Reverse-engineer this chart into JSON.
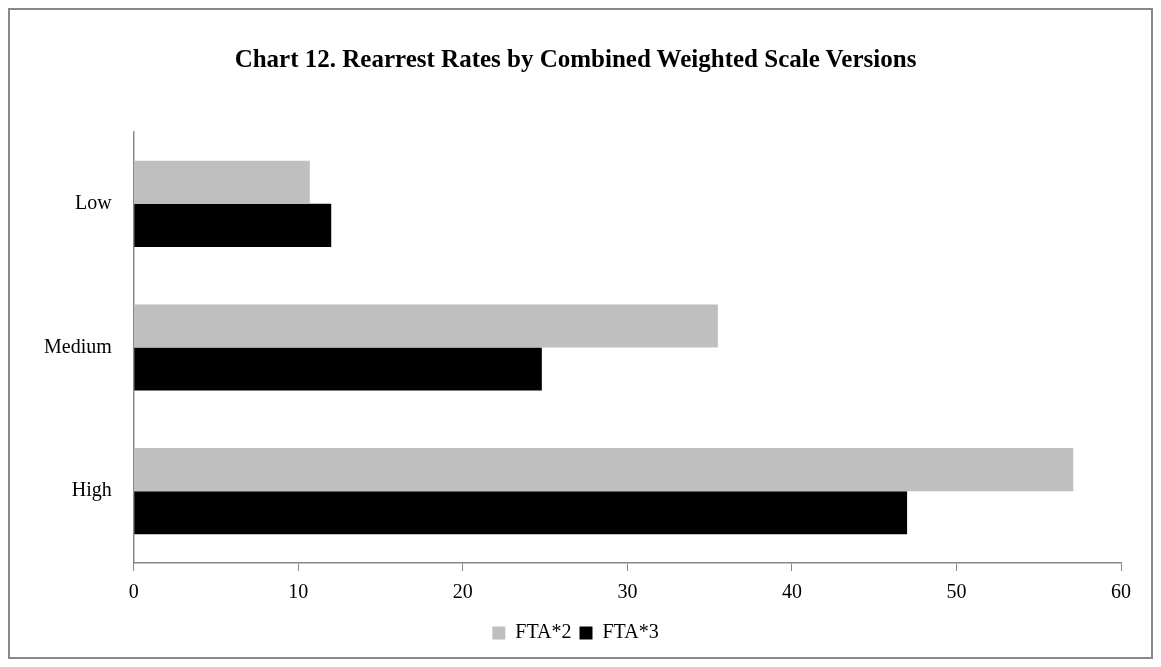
{
  "chart_data": {
    "type": "bar",
    "orientation": "horizontal",
    "title": "Chart 12. Rearrest Rates by Combined Weighted Scale Versions",
    "categories": [
      "Low",
      "Medium",
      "High"
    ],
    "series": [
      {
        "name": "FTA*2",
        "color": "#bfbfbf",
        "values": [
          10.7,
          35.5,
          57.1
        ]
      },
      {
        "name": "FTA*3",
        "color": "#000000",
        "values": [
          12.0,
          24.8,
          47.0
        ]
      }
    ],
    "xlim": [
      0,
      60
    ],
    "xticks": [
      0,
      10,
      20,
      30,
      40,
      50,
      60
    ],
    "grid": false,
    "legend": "bottom"
  }
}
